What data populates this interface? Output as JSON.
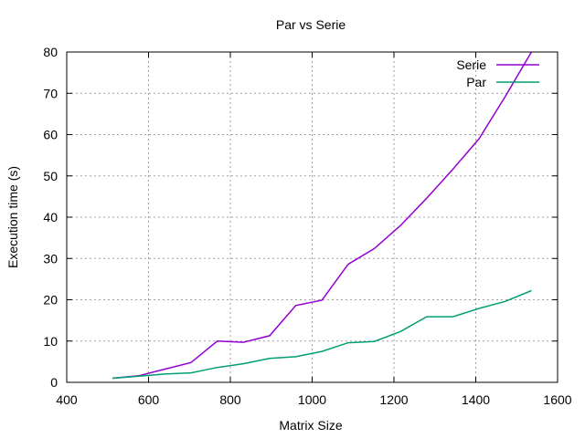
{
  "chart_data": {
    "type": "line",
    "title": "Par vs Serie",
    "xlabel": "Matrix Size",
    "ylabel": "Execution time (s)",
    "xlim": [
      400,
      1600
    ],
    "ylim": [
      0,
      80
    ],
    "x_ticks": [
      400,
      600,
      800,
      1000,
      1200,
      1400,
      1600
    ],
    "y_ticks": [
      0,
      10,
      20,
      30,
      40,
      50,
      60,
      70,
      80
    ],
    "x_tick_labels": [
      "400",
      "600",
      "800",
      "1000",
      "1200",
      "1400",
      "1600"
    ],
    "y_tick_labels": [
      "0",
      "10",
      "20",
      "30",
      "40",
      "50",
      "60",
      "70",
      "80"
    ],
    "grid": true,
    "legend_position": "top-right",
    "series": [
      {
        "name": "Serie",
        "color": "#9400D3",
        "points": [
          [
            512,
            1.0
          ],
          [
            576,
            1.6
          ],
          [
            640,
            3.2
          ],
          [
            704,
            4.8
          ],
          [
            768,
            10.0
          ],
          [
            832,
            9.7
          ],
          [
            896,
            11.3
          ],
          [
            960,
            18.6
          ],
          [
            1024,
            19.9
          ],
          [
            1088,
            28.6
          ],
          [
            1152,
            32.4
          ],
          [
            1216,
            38.0
          ],
          [
            1280,
            44.6
          ],
          [
            1344,
            51.6
          ],
          [
            1408,
            59.0
          ],
          [
            1472,
            69.2
          ],
          [
            1536,
            80.0
          ]
        ]
      },
      {
        "name": "Par",
        "color": "#009E73",
        "points": [
          [
            512,
            1.0
          ],
          [
            576,
            1.5
          ],
          [
            640,
            2.0
          ],
          [
            704,
            2.3
          ],
          [
            768,
            3.6
          ],
          [
            832,
            4.5
          ],
          [
            896,
            5.8
          ],
          [
            960,
            6.2
          ],
          [
            1024,
            7.5
          ],
          [
            1088,
            9.6
          ],
          [
            1152,
            9.9
          ],
          [
            1216,
            12.3
          ],
          [
            1280,
            15.9
          ],
          [
            1344,
            15.9
          ],
          [
            1408,
            17.9
          ],
          [
            1472,
            19.6
          ],
          [
            1536,
            22.2
          ]
        ]
      }
    ]
  }
}
